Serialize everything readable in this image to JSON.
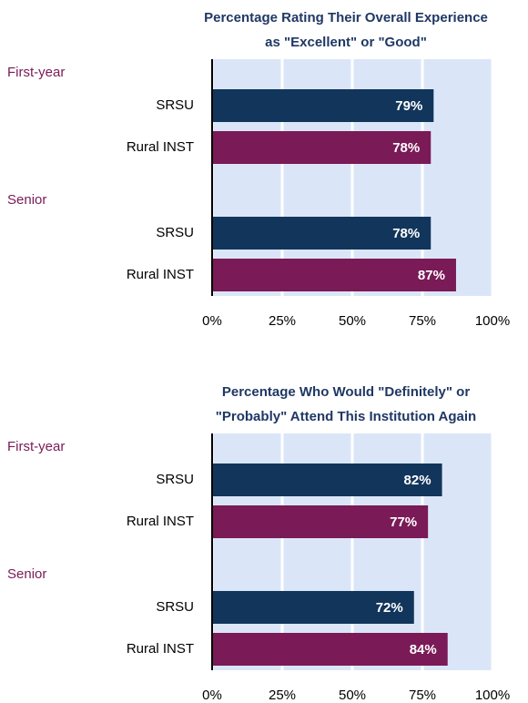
{
  "chart_data": [
    {
      "type": "bar",
      "orientation": "horizontal",
      "title": "Percentage Rating Their Overall Experience\nas \"Excellent\" or \"Good\"",
      "groups": [
        {
          "name": "First-year",
          "categories": [
            "SRSU",
            "Rural INST"
          ],
          "values": [
            79,
            78
          ],
          "value_labels": [
            "79%",
            "78%"
          ]
        },
        {
          "name": "Senior",
          "categories": [
            "SRSU",
            "Rural INST"
          ],
          "values": [
            78,
            87
          ],
          "value_labels": [
            "78%",
            "87%"
          ]
        }
      ],
      "colors": [
        "#12355b",
        "#7a1a56"
      ],
      "xlim": [
        0,
        100
      ],
      "xticks": [
        {
          "value": 0,
          "label": "0%"
        },
        {
          "value": 25,
          "label": "25%"
        },
        {
          "value": 50,
          "label": "50%"
        },
        {
          "value": 75,
          "label": "75%"
        },
        {
          "value": 100,
          "label": "100%"
        }
      ],
      "grid": true
    },
    {
      "type": "bar",
      "orientation": "horizontal",
      "title": "Percentage Who Would \"Definitely\" or\n\"Probably\" Attend This Institution Again",
      "groups": [
        {
          "name": "First-year",
          "categories": [
            "SRSU",
            "Rural INST"
          ],
          "values": [
            82,
            77
          ],
          "value_labels": [
            "82%",
            "77%"
          ]
        },
        {
          "name": "Senior",
          "categories": [
            "SRSU",
            "Rural INST"
          ],
          "values": [
            72,
            84
          ],
          "value_labels": [
            "72%",
            "84%"
          ]
        }
      ],
      "colors": [
        "#12355b",
        "#7a1a56"
      ],
      "xlim": [
        0,
        100
      ],
      "xticks": [
        {
          "value": 0,
          "label": "0%"
        },
        {
          "value": 25,
          "label": "25%"
        },
        {
          "value": 50,
          "label": "50%"
        },
        {
          "value": 75,
          "label": "75%"
        },
        {
          "value": 100,
          "label": "100%"
        }
      ],
      "grid": true
    }
  ]
}
